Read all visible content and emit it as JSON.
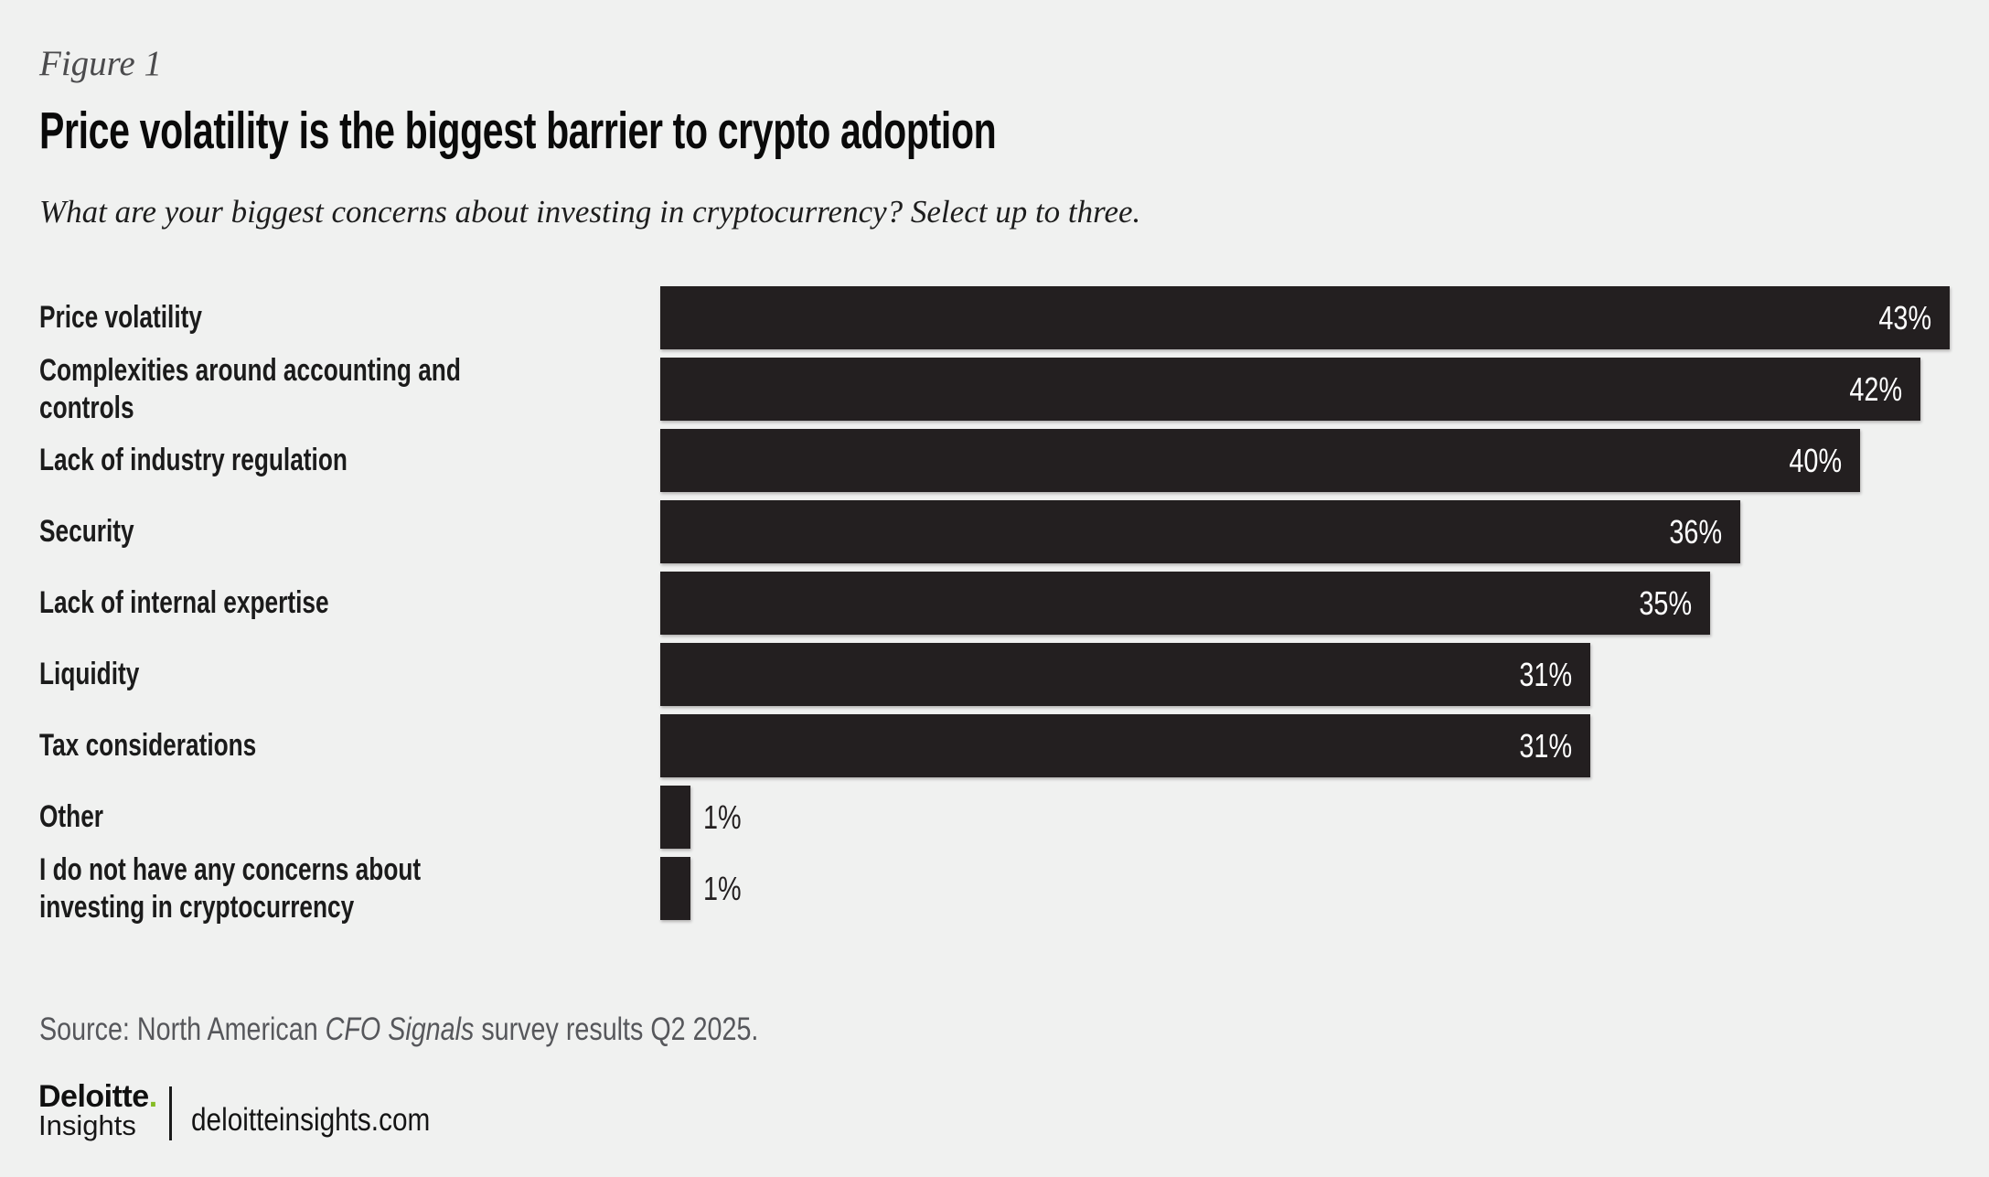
{
  "figure_label": "Figure 1",
  "title": "Price volatility is the biggest barrier to crypto adoption",
  "subtitle": "What are your biggest concerns about investing in cryptocurrency? Select up to three.",
  "chart_data": {
    "type": "bar",
    "orientation": "horizontal",
    "unit": "%",
    "categories": [
      "Price volatility",
      "Complexities around accounting and controls",
      "Lack of industry regulation",
      "Security",
      "Lack of internal expertise",
      "Liquidity",
      "Tax considerations",
      "Other",
      "I do not have any concerns about investing in cryptocurrency"
    ],
    "values": [
      43,
      42,
      40,
      36,
      35,
      31,
      31,
      1,
      1
    ],
    "value_labels": [
      "43%",
      "42%",
      "40%",
      "36%",
      "35%",
      "31%",
      "31%",
      "1%",
      "1%"
    ],
    "xlim": [
      0,
      43
    ],
    "grid": false,
    "legend": false,
    "bar_color": "#231f20",
    "value_label_color_inside": "#ffffff",
    "value_label_color_outside": "#231f20"
  },
  "colors": {
    "background": "#f0f1f0",
    "bar": "#231f20",
    "deloitte_green": "#86bc25",
    "source_text": "#56575b"
  },
  "source": {
    "prefix": "Source: North American ",
    "italic": "CFO Signals",
    "suffix": " survey results Q2 2025."
  },
  "footer": {
    "brand_line1": "Deloitte",
    "brand_dot": ".",
    "brand_line2": "Insights",
    "site": "deloitteinsights.com"
  }
}
